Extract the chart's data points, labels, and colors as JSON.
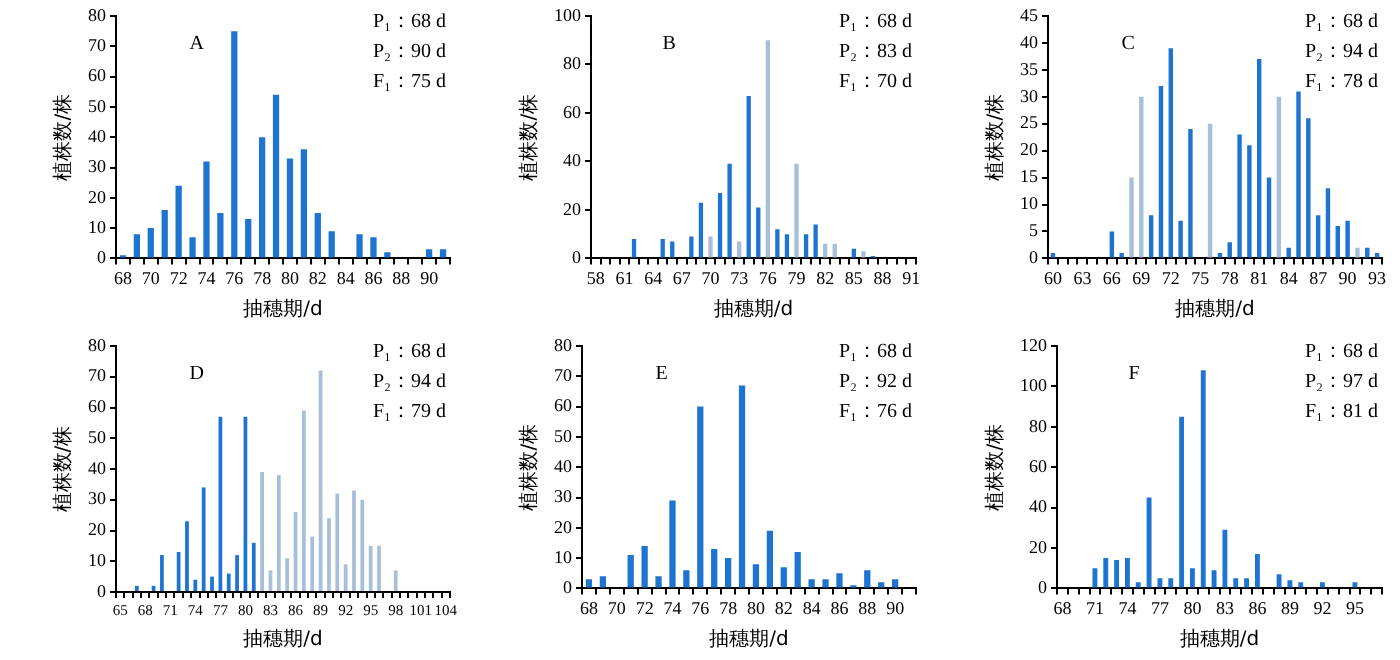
{
  "chart_data": [
    {
      "type": "bar",
      "xlabel": "抽穗期/d",
      "ylabel": "植株数/株",
      "annotations": [
        "A",
        "P₁：68 d",
        "P₂：90 d",
        "F₁：75 d"
      ],
      "categories": [
        "68",
        null,
        "70",
        null,
        "72",
        null,
        "74",
        null,
        "76",
        null,
        "78",
        null,
        "80",
        null,
        "82",
        null,
        "84",
        null,
        "86",
        null,
        "88",
        null,
        "90",
        null
      ],
      "values": [
        1,
        8,
        10,
        16,
        24,
        7,
        32,
        15,
        75,
        13,
        40,
        54,
        33,
        36,
        15,
        9,
        0,
        8,
        7,
        2,
        0,
        0,
        3,
        3
      ],
      "color": "#1e74d0",
      "ylim": [
        0,
        80
      ],
      "yticks": [
        0,
        10,
        20,
        30,
        40,
        50,
        60,
        70,
        80
      ],
      "grid": false,
      "legend": false
    },
    {
      "type": "bar",
      "xlabel": "抽穗期/d",
      "ylabel": "植株数/株",
      "annotations": [
        "B",
        "P₁：68 d",
        "P₂：83 d",
        "F₁：70 d"
      ],
      "categories": [
        "58",
        null,
        null,
        "61",
        null,
        null,
        "64",
        null,
        null,
        "67",
        null,
        null,
        "70",
        null,
        null,
        "73",
        null,
        null,
        "76",
        null,
        null,
        "79",
        null,
        null,
        "82",
        null,
        null,
        "85",
        null,
        null,
        "88",
        null,
        null,
        "91"
      ],
      "values": [
        0,
        0,
        0,
        0,
        8,
        0,
        0,
        8,
        7,
        0,
        9,
        23,
        9,
        27,
        39,
        7,
        67,
        21,
        90,
        12,
        10,
        39,
        10,
        14,
        6,
        6,
        0,
        4,
        3,
        1,
        0,
        0,
        0,
        0
      ],
      "colors": [
        "#1e74d0",
        "#1e74d0",
        "#1e74d0",
        "#1e74d0",
        "#1e74d0",
        "#1e74d0",
        "#1e74d0",
        "#1e74d0",
        "#1e74d0",
        "#1e74d0",
        "#1e74d0",
        "#1e74d0",
        "#a7bfd9",
        "#1e74d0",
        "#1e74d0",
        "#a7bfd9",
        "#1e74d0",
        "#1e74d0",
        "#a7bfd9",
        "#1e74d0",
        "#1e74d0",
        "#a7bfd9",
        "#1e74d0",
        "#1e74d0",
        "#a7bfd9",
        "#a7bfd9",
        "#1e74d0",
        "#1e74d0",
        "#a7bfd9",
        "#1e74d0",
        "#1e74d0",
        "#1e74d0",
        "#1e74d0",
        "#1e74d0"
      ],
      "ylim": [
        0,
        100
      ],
      "yticks": [
        0,
        20,
        40,
        60,
        80,
        100
      ],
      "grid": false,
      "legend": false
    },
    {
      "type": "bar",
      "xlabel": "抽穗期/d",
      "ylabel": "植株数/株",
      "annotations": [
        "C",
        "P₁：68 d",
        "P₂：94 d",
        "F₁：78 d"
      ],
      "categories": [
        "60",
        null,
        null,
        "63",
        null,
        null,
        "66",
        null,
        null,
        "69",
        null,
        null,
        "72",
        null,
        null,
        "75",
        null,
        null,
        "78",
        null,
        null,
        "81",
        null,
        null,
        "84",
        null,
        null,
        "87",
        null,
        null,
        "90",
        null,
        null,
        "93"
      ],
      "values": [
        1,
        0,
        0,
        0,
        0,
        0,
        5,
        1,
        15,
        30,
        8,
        32,
        39,
        7,
        24,
        0,
        25,
        1,
        3,
        23,
        21,
        37,
        15,
        30,
        2,
        31,
        26,
        8,
        13,
        6,
        7,
        2,
        2,
        1
      ],
      "colors": [
        "#1e74d0",
        "#1e74d0",
        "#1e74d0",
        "#1e74d0",
        "#1e74d0",
        "#1e74d0",
        "#1e74d0",
        "#1e74d0",
        "#a7bfd9",
        "#a7bfd9",
        "#1e74d0",
        "#1e74d0",
        "#1e74d0",
        "#1e74d0",
        "#1e74d0",
        "#1e74d0",
        "#a7bfd9",
        "#1e74d0",
        "#1e74d0",
        "#1e74d0",
        "#1e74d0",
        "#1e74d0",
        "#1e74d0",
        "#a7bfd9",
        "#1e74d0",
        "#1e74d0",
        "#1e74d0",
        "#1e74d0",
        "#1e74d0",
        "#1e74d0",
        "#1e74d0",
        "#a7bfd9",
        "#1e74d0",
        "#1e74d0"
      ],
      "ylim": [
        0,
        45
      ],
      "yticks": [
        0,
        5,
        10,
        15,
        20,
        25,
        30,
        35,
        40,
        45
      ],
      "grid": false,
      "legend": false
    },
    {
      "type": "bar",
      "xlabel": "抽穗期/d",
      "ylabel": "植株数/株",
      "annotations": [
        "D",
        "P₁：68 d",
        "P₂：94 d",
        "F₁：79 d"
      ],
      "categories": [
        "65",
        null,
        null,
        "68",
        null,
        null,
        "71",
        null,
        null,
        "74",
        null,
        null,
        "77",
        null,
        null,
        "80",
        null,
        null,
        "83",
        null,
        null,
        "86",
        null,
        null,
        "89",
        null,
        null,
        "92",
        null,
        null,
        "95",
        null,
        null,
        "98",
        null,
        null,
        "101",
        null,
        null,
        "104"
      ],
      "values": [
        0,
        0,
        2,
        0,
        2,
        12,
        0,
        13,
        23,
        4,
        34,
        5,
        57,
        6,
        12,
        57,
        16,
        39,
        7,
        38,
        11,
        26,
        59,
        18,
        72,
        24,
        32,
        9,
        33,
        30,
        15,
        15,
        0,
        7,
        0,
        0,
        0,
        0,
        0,
        0
      ],
      "colors": [
        "#1e74d0",
        "#1e74d0",
        "#1e74d0",
        "#1e74d0",
        "#1e74d0",
        "#1e74d0",
        "#1e74d0",
        "#1e74d0",
        "#1e74d0",
        "#1e74d0",
        "#1e74d0",
        "#1e74d0",
        "#1e74d0",
        "#1e74d0",
        "#1e74d0",
        "#1e74d0",
        "#1e74d0",
        "#a7bfd9",
        "#a7bfd9",
        "#a7bfd9",
        "#a7bfd9",
        "#a7bfd9",
        "#a7bfd9",
        "#a7bfd9",
        "#a7bfd9",
        "#a7bfd9",
        "#a7bfd9",
        "#a7bfd9",
        "#a7bfd9",
        "#a7bfd9",
        "#a7bfd9",
        "#a7bfd9",
        "#a7bfd9",
        "#a7bfd9",
        "#a7bfd9",
        "#a7bfd9",
        "#a7bfd9",
        "#a7bfd9",
        "#a7bfd9",
        "#a7bfd9"
      ],
      "ylim": [
        0,
        80
      ],
      "yticks": [
        0,
        10,
        20,
        30,
        40,
        50,
        60,
        70,
        80
      ],
      "grid": false,
      "legend": false
    },
    {
      "type": "bar",
      "xlabel": "抽穗期/d",
      "ylabel": "植株数/株",
      "annotations": [
        "E",
        "P₁：68 d",
        "P₂：92 d",
        "F₁：76 d"
      ],
      "categories": [
        "68",
        null,
        "70",
        null,
        "72",
        null,
        "74",
        null,
        "76",
        null,
        "78",
        null,
        "80",
        null,
        "82",
        null,
        "84",
        null,
        "86",
        null,
        "88",
        null,
        "90",
        null
      ],
      "values": [
        3,
        4,
        0,
        11,
        14,
        4,
        29,
        6,
        60,
        13,
        10,
        67,
        8,
        19,
        7,
        12,
        3,
        3,
        5,
        1,
        6,
        2,
        3,
        0
      ],
      "color": "#1e74d0",
      "ylim": [
        0,
        80
      ],
      "yticks": [
        0,
        10,
        20,
        30,
        40,
        50,
        60,
        70,
        80
      ],
      "grid": false,
      "legend": false
    },
    {
      "type": "bar",
      "xlabel": "抽穗期/d",
      "ylabel": "植株数/株",
      "annotations": [
        "F",
        "P₁：68 d",
        "P₂：97 d",
        "F₁：81 d"
      ],
      "categories": [
        "68",
        null,
        null,
        "71",
        null,
        null,
        "74",
        null,
        null,
        "77",
        null,
        null,
        "80",
        null,
        null,
        "83",
        null,
        null,
        "86",
        null,
        null,
        "89",
        null,
        null,
        "92",
        null,
        null,
        "95",
        null,
        null
      ],
      "values": [
        0,
        0,
        0,
        10,
        15,
        14,
        15,
        3,
        45,
        5,
        5,
        85,
        10,
        108,
        9,
        29,
        5,
        5,
        17,
        0,
        7,
        4,
        3,
        0,
        3,
        0,
        0,
        3,
        0,
        0
      ],
      "color": "#1e74d0",
      "ylim": [
        0,
        120
      ],
      "yticks": [
        0,
        20,
        40,
        60,
        80,
        100,
        120
      ],
      "grid": false,
      "legend": false
    }
  ]
}
